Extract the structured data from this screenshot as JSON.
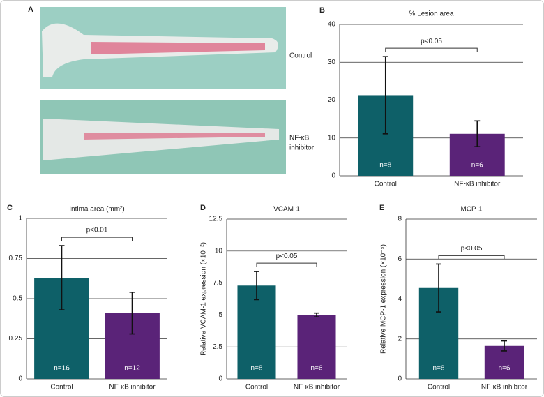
{
  "panel_a": {
    "label": "A",
    "images": [
      {
        "label": [
          "Control"
        ]
      },
      {
        "label": [
          "NF-κB",
          "inhibitor"
        ]
      }
    ]
  },
  "chart_data": [
    {
      "type": "bar",
      "panel": "B",
      "title": "% Lesion area",
      "categories": [
        "Control",
        "NF-κB inhibitor"
      ],
      "values": [
        21.3,
        11.1
      ],
      "errors": [
        10.2,
        3.4
      ],
      "n_labels": [
        "n=8",
        "n=6"
      ],
      "colors": [
        "#0e6068",
        "#5a2378"
      ],
      "significance": "p<0.05",
      "ylim": [
        0,
        40
      ],
      "yticks": [
        0,
        10,
        20,
        30,
        40
      ],
      "grid": true
    },
    {
      "type": "bar",
      "panel": "C",
      "title": "Intima area (mm²)",
      "categories": [
        "Control",
        "NF-κB inhibitor"
      ],
      "values": [
        0.63,
        0.41
      ],
      "errors": [
        0.2,
        0.13
      ],
      "n_labels": [
        "n=16",
        "n=12"
      ],
      "colors": [
        "#0e6068",
        "#5a2378"
      ],
      "significance": "p<0.01",
      "ylim": [
        0,
        1
      ],
      "yticks": [
        0,
        0.25,
        0.5,
        0.75,
        1
      ],
      "grid": true
    },
    {
      "type": "bar",
      "panel": "D",
      "title": "VCAM-1",
      "ylabel": "Relative VCAM-1 expression (×10⁻²)",
      "categories": [
        "Control",
        "NF-κB inhibitor"
      ],
      "values": [
        7.3,
        5.0
      ],
      "errors": [
        1.1,
        0.15
      ],
      "n_labels": [
        "n=8",
        "n=6"
      ],
      "colors": [
        "#0e6068",
        "#5a2378"
      ],
      "significance": "p<0.05",
      "ylim": [
        0,
        12.5
      ],
      "yticks": [
        0,
        2.5,
        5,
        7.5,
        10,
        12.5
      ],
      "grid": true
    },
    {
      "type": "bar",
      "panel": "E",
      "title": "MCP-1",
      "ylabel": "Relative MCP-1 expression (×10⁻⁵)",
      "categories": [
        "Control",
        "NF-κB inhibitor"
      ],
      "values": [
        4.55,
        1.65
      ],
      "errors": [
        1.2,
        0.25
      ],
      "n_labels": [
        "n=8",
        "n=6"
      ],
      "colors": [
        "#0e6068",
        "#5a2378"
      ],
      "significance": "p<0.05",
      "ylim": [
        0,
        8
      ],
      "yticks": [
        0,
        2,
        4,
        6,
        8
      ],
      "grid": true
    }
  ]
}
